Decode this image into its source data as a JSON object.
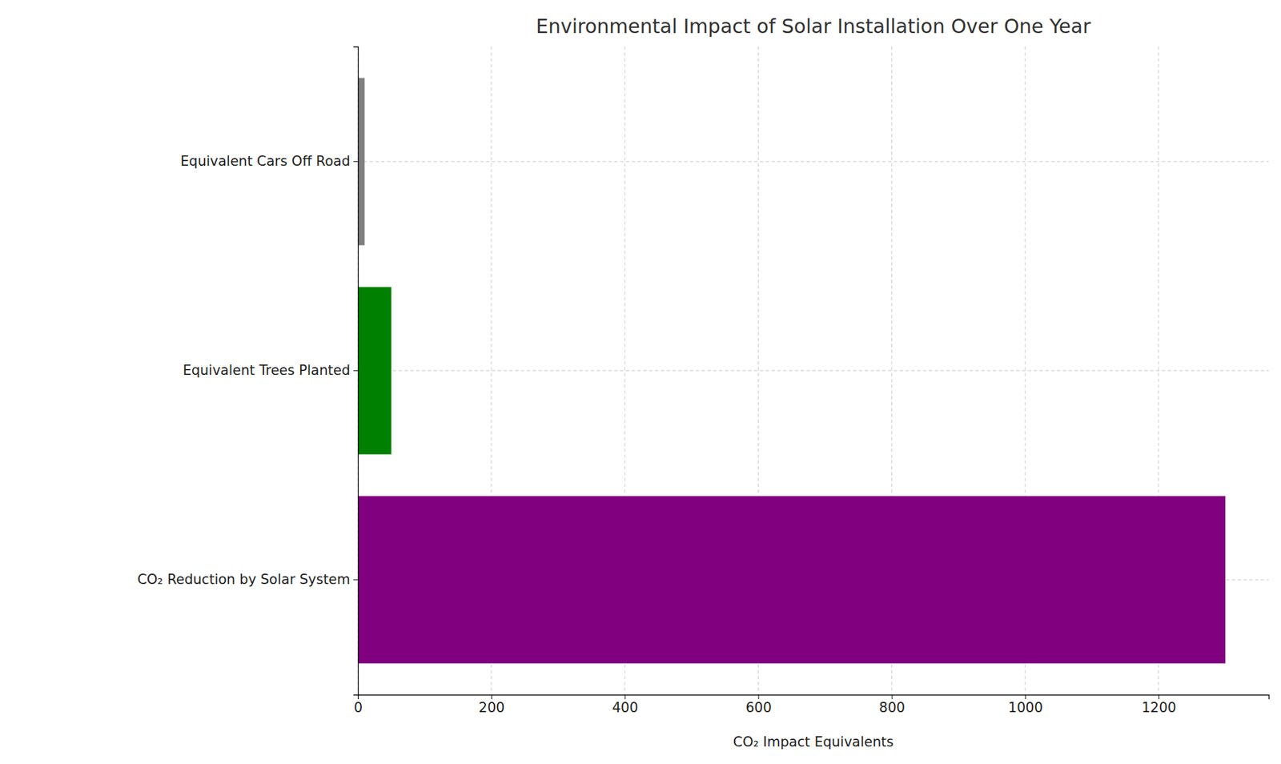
{
  "chart_data": {
    "type": "bar",
    "orientation": "horizontal",
    "title": "Environmental Impact of Solar Installation Over One Year",
    "xlabel": "CO₂ Impact Equivalents",
    "categories": [
      "CO₂ Reduction by Solar System",
      "Equivalent Trees Planted",
      "Equivalent Cars Off Road"
    ],
    "values": [
      1300,
      50,
      10
    ],
    "colors": [
      "#800080",
      "#008000",
      "#808080"
    ],
    "xlim": [
      0,
      1365
    ],
    "xticks": [
      0,
      200,
      400,
      600,
      800,
      1000,
      1200
    ],
    "grid": true
  }
}
